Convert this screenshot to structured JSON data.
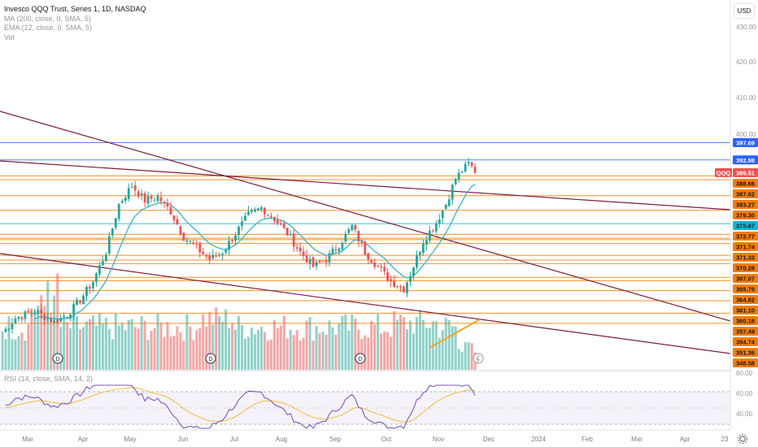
{
  "legend": {
    "symbol": "Invesco QQQ Trust, Series 1, 1D, NASDAQ",
    "ma": "MA (200, close, 0, SMA, 5)",
    "ema": "EMA (12, close, 0, SMA, 5)",
    "vol": "Vol",
    "rsi": "RSI (14, close, SMA, 14, 2)"
  },
  "currency_button": "USD",
  "price_axis_ticks": [
    "430.00",
    "420.00",
    "410.00",
    "400.00"
  ],
  "rsi_axis_ticks": [
    "80.00",
    "60.00",
    "40.00"
  ],
  "time_axis": [
    "Mar",
    "Apr",
    "May",
    "Jun",
    "Jul",
    "Aug",
    "Sep",
    "Oct",
    "Nov",
    "Dec",
    "2024",
    "Feb",
    "Mar",
    "Apr",
    "23"
  ],
  "price_labels": [
    {
      "text": "397.69",
      "kind": "blue"
    },
    {
      "text": "392.98",
      "kind": "blue"
    },
    {
      "text": "389.51",
      "kind": "last"
    },
    {
      "text": "388.66",
      "kind": "orange"
    },
    {
      "text": "387.62",
      "kind": "orange"
    },
    {
      "text": "383.27",
      "kind": "orange"
    },
    {
      "text": "379.30",
      "kind": "orange"
    },
    {
      "text": "375.67",
      "kind": "teal"
    },
    {
      "text": "372.77",
      "kind": "orange"
    },
    {
      "text": "371.74",
      "kind": "orange"
    },
    {
      "text": "371.33",
      "kind": "orange"
    },
    {
      "text": "370.28",
      "kind": "orange"
    },
    {
      "text": "367.07",
      "kind": "orange"
    },
    {
      "text": "365.79",
      "kind": "orange"
    },
    {
      "text": "364.82",
      "kind": "orange"
    },
    {
      "text": "361.10",
      "kind": "orange"
    },
    {
      "text": "360.18",
      "kind": "orange"
    },
    {
      "text": "357.49",
      "kind": "orange"
    },
    {
      "text": "354.74",
      "kind": "orange"
    },
    {
      "text": "351.36",
      "kind": "orange"
    },
    {
      "text": "348.58",
      "kind": "orange"
    }
  ],
  "ticker_badge": "QQQ",
  "event_markers": [
    "D",
    "D",
    "D"
  ],
  "colors": {
    "up": "#26a69a",
    "down": "#ef5350",
    "level_orange": "#f57c00",
    "level_blue": "#2962ff",
    "level_teal": "#00bcd4",
    "trendline": "#7b1e3a",
    "ema": "#3cb4c8",
    "ma": "#f5a623",
    "rsi": "#7e57c2",
    "rsi_ma": "#f2c14e"
  }
}
